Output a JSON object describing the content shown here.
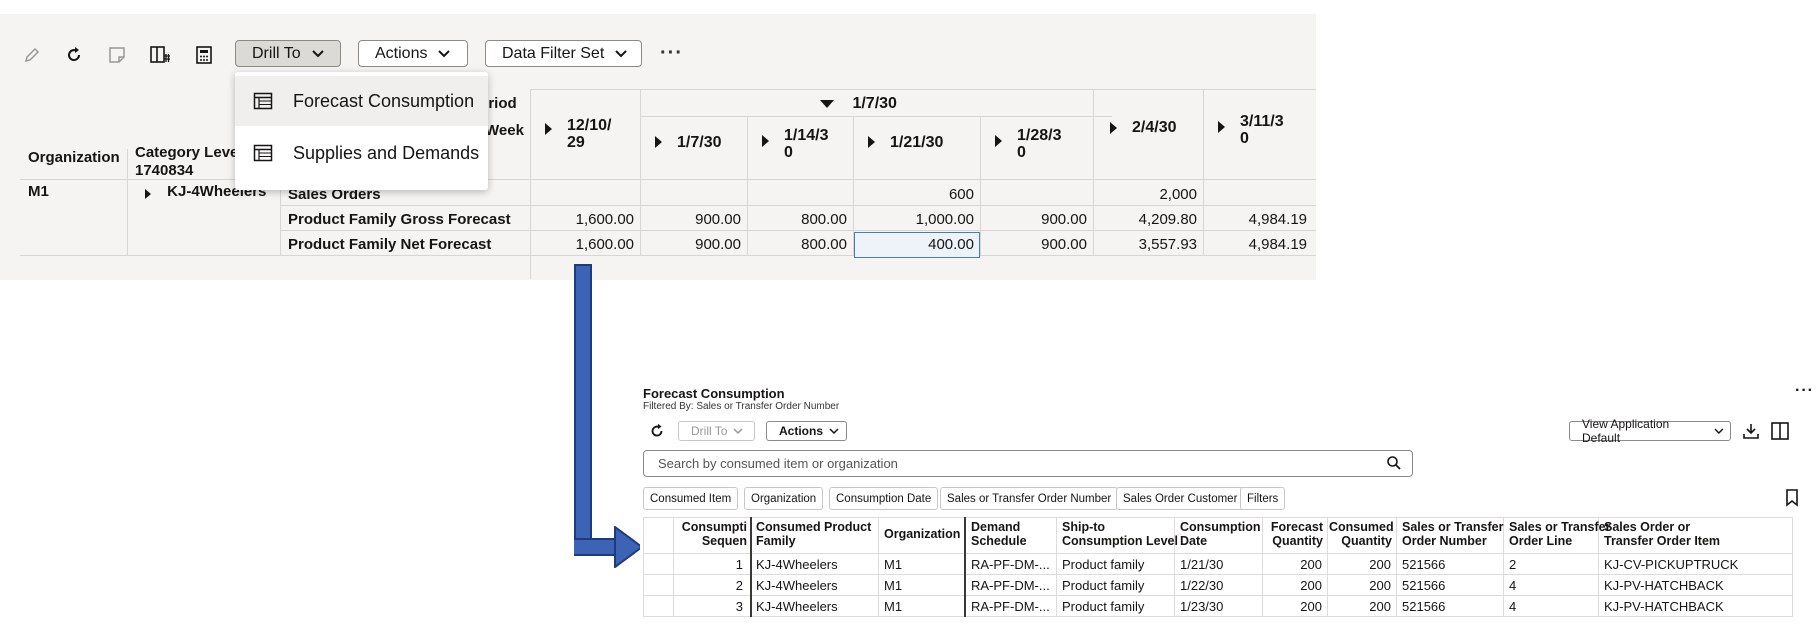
{
  "toolbar": {
    "drill_to_label": "Drill To",
    "actions_label": "Actions",
    "data_filter_set_label": "Data Filter Set",
    "icons": [
      "edit-icon",
      "refresh-icon",
      "note-icon",
      "layout-icon",
      "calculator-icon",
      "more-icon"
    ]
  },
  "drill_menu": {
    "items": [
      {
        "label": "Forecast Consumption"
      },
      {
        "label": "Supplies and Demands"
      }
    ]
  },
  "pivot": {
    "row_headers": {
      "organization": "Organization",
      "category_level": "Category Leve",
      "category_level_2": "1740834",
      "period": "eriod",
      "week": "Week"
    },
    "group_header": "1/7/30",
    "columns": [
      {
        "label": "12/10/\n29",
        "expandable": true
      },
      {
        "label": "1/7/30",
        "expandable": true
      },
      {
        "label": "1/14/3\n0",
        "expandable": true
      },
      {
        "label": "1/21/30",
        "expandable": true
      },
      {
        "label": "1/28/3\n0",
        "expandable": true
      },
      {
        "label": "2/4/30",
        "expandable": true
      },
      {
        "label": "3/11/3\n0",
        "expandable": true
      }
    ],
    "org_value": "M1",
    "category_value": "KJ-4Wheelers",
    "rows": [
      {
        "measure": "Sales Orders",
        "values": [
          "",
          "",
          "",
          "600",
          "",
          "2,000",
          ""
        ]
      },
      {
        "measure": "Product Family Gross Forecast",
        "values": [
          "1,600.00",
          "900.00",
          "800.00",
          "1,000.00",
          "900.00",
          "4,209.80",
          "4,984.19"
        ]
      },
      {
        "measure": "Product Family Net Forecast",
        "values": [
          "1,600.00",
          "900.00",
          "800.00",
          "400.00",
          "900.00",
          "3,557.93",
          "4,984.19"
        ]
      }
    ],
    "selected_cell": {
      "row": 2,
      "col": 3
    }
  },
  "forecast_panel": {
    "title": "Forecast Consumption",
    "subtitle": "Filtered By: Sales or Transfer Order Number",
    "drill_to_label": "Drill To",
    "actions_label": "Actions",
    "view_label": "View Application Default",
    "search_placeholder": "Search by consumed item or organization",
    "chips": [
      "Consumed Item",
      "Organization",
      "Consumption Date",
      "Sales or Transfer Order Number",
      "Sales Order Customer",
      "Filters"
    ],
    "columns": [
      {
        "label": "Consumpti\nSequen"
      },
      {
        "label": "Consumed Product\nFamily"
      },
      {
        "label": "Organization"
      },
      {
        "label": "Demand\nSchedule"
      },
      {
        "label": "Ship-to\nConsumption Level"
      },
      {
        "label": "Consumption\nDate"
      },
      {
        "label": "Forecast\nQuantity"
      },
      {
        "label": "Consumed\nQuantity"
      },
      {
        "label": "Sales or Transfer\nOrder Number"
      },
      {
        "label": "Sales or Transfer\nOrder Line"
      },
      {
        "label": "Sales Order or\nTransfer Order Item"
      }
    ],
    "rows": [
      [
        "1",
        "KJ-4Wheelers",
        "M1",
        "RA-PF-DM-...",
        "Product family",
        "1/21/30",
        "200",
        "200",
        "521566",
        "2",
        "KJ-CV-PICKUPTRUCK"
      ],
      [
        "2",
        "KJ-4Wheelers",
        "M1",
        "RA-PF-DM-...",
        "Product family",
        "1/22/30",
        "200",
        "200",
        "521566",
        "4",
        "KJ-PV-HATCHBACK"
      ],
      [
        "3",
        "KJ-4Wheelers",
        "M1",
        "RA-PF-DM-...",
        "Product family",
        "1/23/30",
        "200",
        "200",
        "521566",
        "4",
        "KJ-PV-HATCHBACK"
      ]
    ]
  },
  "colors": {
    "accent_blue": "#3c63b5",
    "panel_bg": "#f5f4f2",
    "selected_border": "#4a7bbd"
  }
}
